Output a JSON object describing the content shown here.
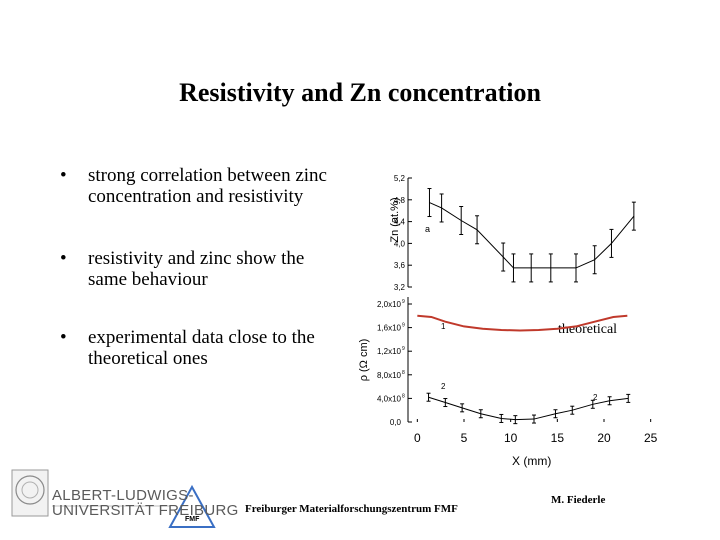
{
  "title": "Resistivity and Zn concentration",
  "bullets": [
    {
      "line1": "strong correlation between zinc",
      "line2": "concentration and resistivity"
    },
    {
      "line1": "resistivity and zinc show the",
      "line2": "same behaviour"
    },
    {
      "line1": "experimental data close to the",
      "line2": "theoretical ones"
    }
  ],
  "chart_data": [
    {
      "type": "line",
      "ylabel": "Zn (at.%)",
      "ylim": [
        3.2,
        5.2
      ],
      "yticks": [
        "3,2",
        "3,6",
        "4,0",
        "4,4",
        "4,8",
        "5,2"
      ],
      "annotation": "a",
      "x": [
        1.3,
        2.6,
        4.7,
        6.4,
        9.2,
        10.3,
        12.2,
        14.3,
        17.0,
        19.0,
        20.8,
        23.2
      ],
      "y": [
        4.75,
        4.65,
        4.42,
        4.25,
        3.75,
        3.55,
        3.55,
        3.55,
        3.55,
        3.7,
        4.0,
        4.5
      ]
    },
    {
      "type": "line",
      "ylabel": "ρ (Ω cm)",
      "xlabel": "X (mm)",
      "xlim": [
        -1,
        26
      ],
      "xticks": [
        "0",
        "5",
        "10",
        "15",
        "20",
        "25"
      ],
      "ylim": [
        0,
        2.0
      ],
      "yticks": [
        "0,0",
        "4,0x10",
        "8,0x10",
        "1,2x10",
        "1,6x10",
        "2,0x10"
      ],
      "ytick_exponents": [
        "",
        "8",
        "8",
        "9",
        "9",
        "9"
      ],
      "annotations": [
        "1",
        "2",
        "2"
      ],
      "series": [
        {
          "name": "theoretical",
          "x": [
            0.0,
            1.5,
            3.0,
            5.0,
            7.0,
            9.0,
            11.0,
            13.0,
            15.0,
            17.0,
            19.0,
            21.0,
            22.5
          ],
          "y": [
            1.8,
            1.78,
            1.7,
            1.62,
            1.58,
            1.56,
            1.55,
            1.56,
            1.58,
            1.62,
            1.7,
            1.78,
            1.8
          ]
        },
        {
          "x": [
            1.2,
            3.0,
            4.8,
            6.8,
            9.0,
            10.5,
            12.5,
            14.8,
            16.6,
            18.8,
            20.6,
            22.6
          ],
          "y": [
            0.42,
            0.33,
            0.24,
            0.14,
            0.06,
            0.04,
            0.05,
            0.14,
            0.2,
            0.3,
            0.36,
            0.4
          ]
        }
      ]
    }
  ],
  "footer": {
    "university_line1": "ALBERT-LUDWIGS-",
    "university_line2": "UNIVERSITÄT FREIBURG",
    "logo_text": "FMF",
    "center": "Freiburger Materialforschungszentrum FMF",
    "author": "M. Fiederle"
  }
}
